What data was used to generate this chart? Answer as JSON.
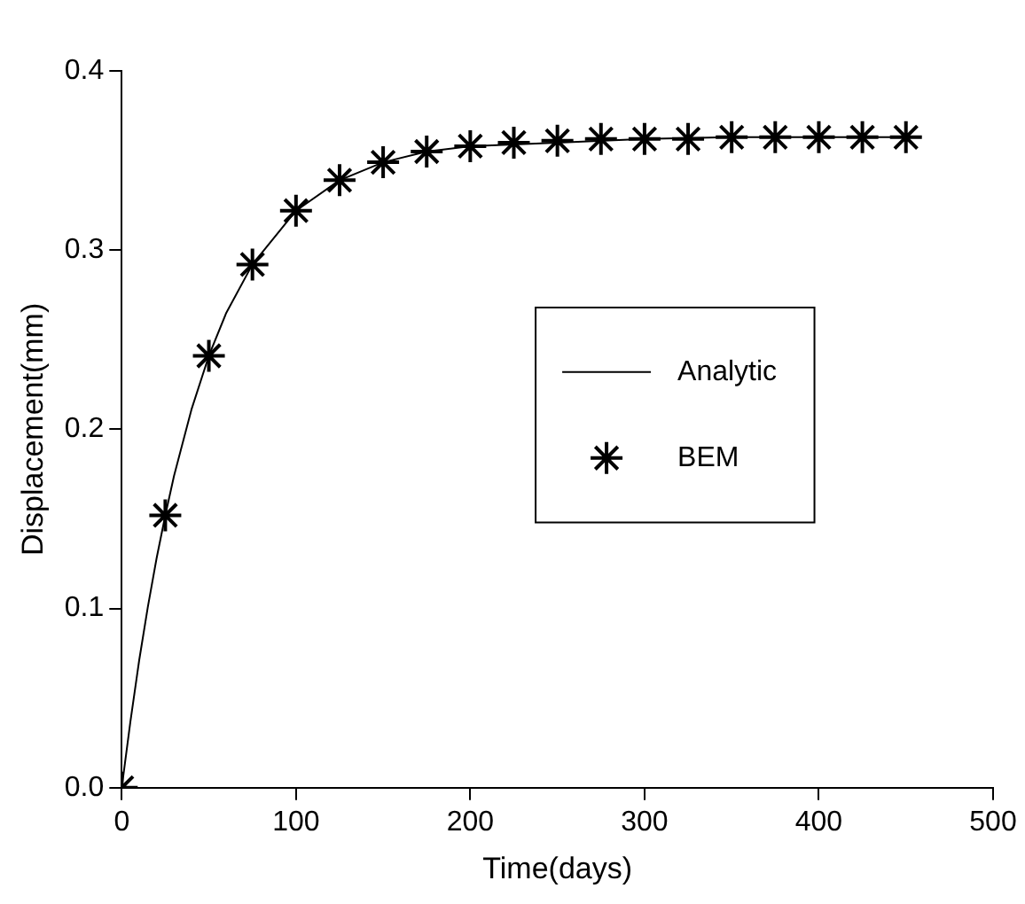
{
  "chart_data": {
    "type": "line",
    "xlabel": "Time(days)",
    "ylabel": "Displacement(mm)",
    "xlim": [
      0,
      500
    ],
    "xticks": [
      0,
      100,
      200,
      300,
      400,
      500
    ],
    "ylim": [
      0,
      0.4
    ],
    "yticks": [
      {
        "value": 0,
        "label": "0.0"
      },
      0.1,
      0.2,
      0.3,
      0.4
    ],
    "grid": false,
    "legend": "right",
    "series": [
      {
        "name": "Analytic",
        "marker": "none",
        "color": "#000000",
        "x": [
          0,
          5,
          10,
          15,
          20,
          25,
          30,
          40,
          50,
          60,
          75,
          100,
          125,
          150,
          175,
          200,
          250,
          300,
          350,
          400,
          450
        ],
        "values": [
          0,
          0.037,
          0.071,
          0.101,
          0.128,
          0.152,
          0.174,
          0.211,
          0.241,
          0.265,
          0.292,
          0.322,
          0.339,
          0.349,
          0.355,
          0.358,
          0.36,
          0.362,
          0.363,
          0.363,
          0.363
        ]
      },
      {
        "name": "BEM",
        "type": "scatter",
        "marker": "cross",
        "color": "#000000",
        "x": [
          0,
          25,
          50,
          75,
          100,
          125,
          150,
          175,
          200,
          225,
          250,
          275,
          300,
          325,
          350,
          375,
          400,
          425,
          450
        ],
        "values": [
          0,
          0.152,
          0.241,
          0.292,
          0.322,
          0.339,
          0.349,
          0.355,
          0.358,
          0.36,
          0.361,
          0.362,
          0.362,
          0.362,
          0.363,
          0.363,
          0.363,
          0.363,
          0.363
        ]
      }
    ]
  }
}
